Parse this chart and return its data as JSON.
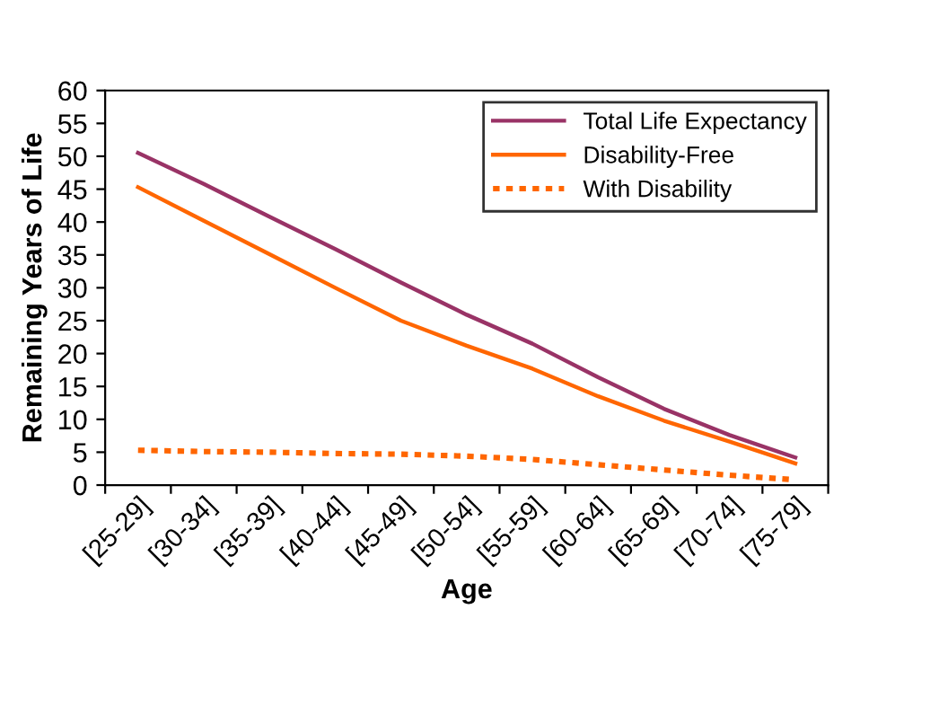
{
  "chart_data": {
    "type": "line",
    "xlabel": "Age",
    "ylabel": "Remaining Years of Life",
    "categories": [
      "[25-29]",
      "[30-34]",
      "[35-39]",
      "[40-44]",
      "[45-49]",
      "[50-54]",
      "[55-59]",
      "[60-64]",
      "[65-69]",
      "[70-74]",
      "[75-79]"
    ],
    "series": [
      {
        "name": "Total Life Expectancy",
        "color": "#993366",
        "line_style": "solid",
        "values": [
          50.5,
          45.8,
          40.8,
          35.9,
          30.8,
          25.9,
          21.5,
          16.4,
          11.6,
          7.6,
          4.2
        ]
      },
      {
        "name": "Disability-Free",
        "color": "#ff6600",
        "line_style": "solid",
        "values": [
          45.3,
          40.2,
          35.1,
          30,
          25,
          21.2,
          17.7,
          13.5,
          9.8,
          6.6,
          3.3
        ]
      },
      {
        "name": "With Disability",
        "color": "#ff6600",
        "line_style": "dotted",
        "values": [
          5.3,
          5.1,
          5,
          4.8,
          4.7,
          4.4,
          3.9,
          3.1,
          2.3,
          1.5,
          0.8
        ]
      }
    ],
    "ylim": [
      0,
      60
    ],
    "yticks": [
      0,
      5,
      10,
      15,
      20,
      25,
      30,
      35,
      40,
      45,
      50,
      55,
      60
    ],
    "grid": false,
    "legend": "top right",
    "marker": "none"
  }
}
